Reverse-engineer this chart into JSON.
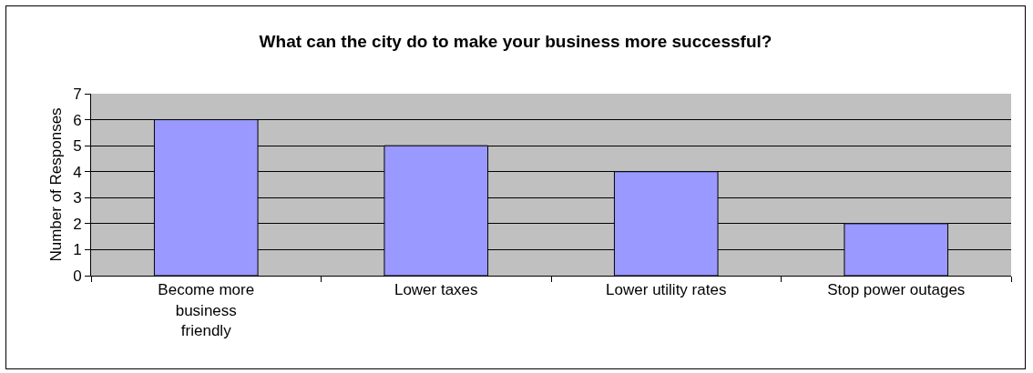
{
  "chart_data": {
    "type": "bar",
    "title": "What can the city do to make your business more successful?",
    "ylabel": "Number of Responses",
    "categories": [
      "Become more business friendly",
      "Lower taxes",
      "Lower utility rates",
      "Stop power outages"
    ],
    "values": [
      6,
      5,
      4,
      2
    ],
    "color": "#9999ff",
    "ylim": [
      0,
      7
    ],
    "yticks": [
      0,
      1,
      2,
      3,
      4,
      5,
      6,
      7
    ],
    "grid": "y"
  }
}
